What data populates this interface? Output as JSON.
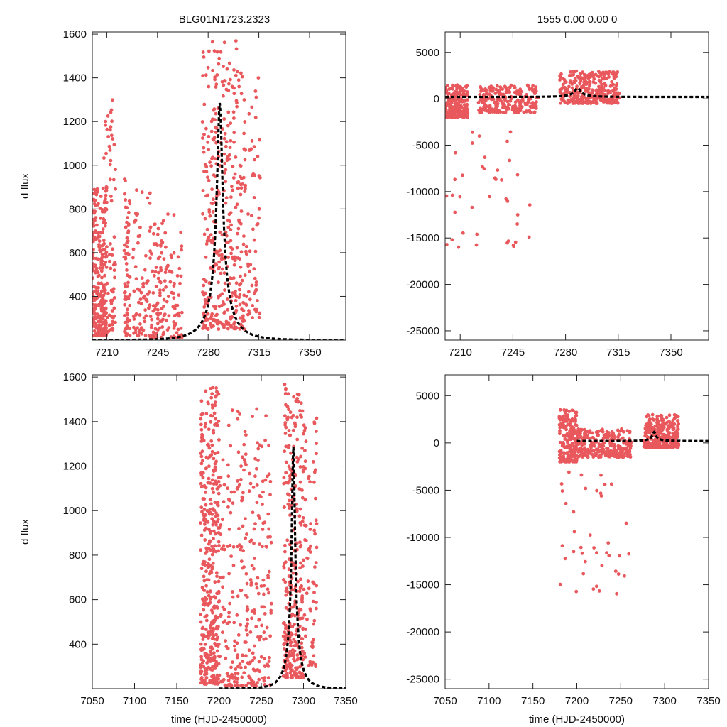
{
  "titles": {
    "left": "BLG01N1723.2323",
    "right": "1555  0.00  0.00  0"
  },
  "colors": {
    "points": "#e8585c",
    "model": "#000000"
  },
  "chart_data": [
    {
      "id": "top-left",
      "type": "scatter",
      "ylabel": "d flux",
      "xlabel": "",
      "xlim": [
        7200,
        7375
      ],
      "ylim": [
        200,
        1610
      ],
      "xticks": [
        7210,
        7245,
        7280,
        7315,
        7350
      ],
      "yticks": [
        400,
        600,
        800,
        1000,
        1200,
        1400,
        1600
      ],
      "series": [
        {
          "name": "data",
          "kind": "points",
          "clusters": [
            {
              "x": [
                7200,
                7210
              ],
              "y": [
                220,
                900
              ],
              "n": 260
            },
            {
              "x": [
                7208,
                7216
              ],
              "y": [
                240,
                1300
              ],
              "n": 80
            },
            {
              "x": [
                7222,
                7226
              ],
              "y": [
                220,
                950
              ],
              "n": 70
            },
            {
              "x": [
                7228,
                7240
              ],
              "y": [
                220,
                900
              ],
              "n": 70
            },
            {
              "x": [
                7240,
                7262
              ],
              "y": [
                210,
                780
              ],
              "n": 140
            },
            {
              "x": [
                7276,
                7306
              ],
              "y": [
                250,
                1570
              ],
              "n": 380
            },
            {
              "x": [
                7306,
                7316
              ],
              "y": [
                300,
                1420
              ],
              "n": 60
            }
          ]
        },
        {
          "name": "model",
          "kind": "pspl",
          "t0": 7288,
          "tE": 18,
          "u0": 0.1,
          "base": 200,
          "peak": 1285
        }
      ]
    },
    {
      "id": "top-right",
      "type": "scatter",
      "ylabel": "",
      "xlabel": "",
      "xlim": [
        7200,
        7375
      ],
      "ylim": [
        -26000,
        7200
      ],
      "xticks": [
        7210,
        7245,
        7280,
        7315,
        7350
      ],
      "yticks": [
        5000,
        0,
        -5000,
        -10000,
        -15000,
        -20000,
        -25000
      ],
      "series": [
        {
          "name": "data",
          "kind": "points",
          "clusters": [
            {
              "x": [
                7200,
                7215
              ],
              "y": [
                -2000,
                1500
              ],
              "n": 200
            },
            {
              "x": [
                7222,
                7262
              ],
              "y": [
                -1500,
                1500
              ],
              "n": 240
            },
            {
              "x": [
                7276,
                7316
              ],
              "y": [
                -500,
                3000
              ],
              "n": 320
            },
            {
              "x": [
                7200,
                7262
              ],
              "y": [
                -16000,
                -3000
              ],
              "n": 40
            }
          ]
        },
        {
          "name": "model",
          "kind": "pspl",
          "t0": 7288,
          "tE": 18,
          "u0": 0.1,
          "base": 200,
          "peak": 1150
        }
      ]
    },
    {
      "id": "bottom-left",
      "type": "scatter",
      "ylabel": "d flux",
      "xlabel": "time (HJD-2450000)",
      "xlim": [
        7050,
        7350
      ],
      "ylim": [
        200,
        1610
      ],
      "xticks": [
        7050,
        7100,
        7150,
        7200,
        7250,
        7300,
        7350
      ],
      "yticks": [
        400,
        600,
        800,
        1000,
        1200,
        1400,
        1600
      ],
      "series": [
        {
          "name": "data",
          "kind": "points",
          "clusters": [
            {
              "x": [
                7178,
                7200
              ],
              "y": [
                220,
                1560
              ],
              "n": 400
            },
            {
              "x": [
                7200,
                7262
              ],
              "y": [
                210,
                1460
              ],
              "n": 300
            },
            {
              "x": [
                7276,
                7300
              ],
              "y": [
                250,
                1570
              ],
              "n": 320
            },
            {
              "x": [
                7300,
                7316
              ],
              "y": [
                300,
                1420
              ],
              "n": 80
            }
          ]
        },
        {
          "name": "model",
          "kind": "pspl",
          "t0": 7288,
          "tE": 18,
          "u0": 0.1,
          "base": 200,
          "peak": 1285,
          "start": 7200
        }
      ]
    },
    {
      "id": "bottom-right",
      "type": "scatter",
      "ylabel": "",
      "xlabel": "time (HJD-2450000)",
      "xlim": [
        7050,
        7350
      ],
      "ylim": [
        -26000,
        7200
      ],
      "xticks": [
        7050,
        7100,
        7150,
        7200,
        7250,
        7300,
        7350
      ],
      "yticks": [
        5000,
        0,
        -5000,
        -10000,
        -15000,
        -20000,
        -25000
      ],
      "series": [
        {
          "name": "data",
          "kind": "points",
          "clusters": [
            {
              "x": [
                7180,
                7200
              ],
              "y": [
                -2000,
                3500
              ],
              "n": 200
            },
            {
              "x": [
                7200,
                7262
              ],
              "y": [
                -1500,
                1500
              ],
              "n": 260
            },
            {
              "x": [
                7276,
                7316
              ],
              "y": [
                -500,
                3000
              ],
              "n": 320
            },
            {
              "x": [
                7180,
                7262
              ],
              "y": [
                -16000,
                -3000
              ],
              "n": 40
            }
          ]
        },
        {
          "name": "model",
          "kind": "pspl",
          "t0": 7288,
          "tE": 18,
          "u0": 0.1,
          "base": 200,
          "peak": 1150,
          "start": 7200
        }
      ]
    }
  ]
}
